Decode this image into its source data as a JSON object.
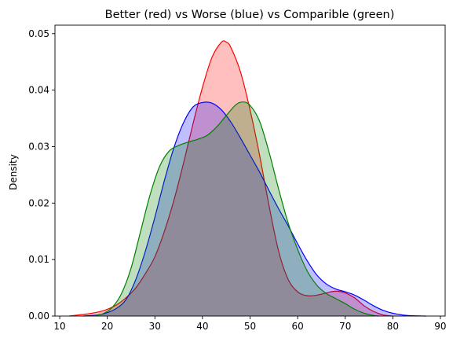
{
  "chart_data": {
    "type": "area",
    "title": "Better (red) vs Worse (blue) vs Comparible (green)",
    "xlabel": "",
    "ylabel": "Density",
    "xlim": [
      9,
      91
    ],
    "ylim": [
      0,
      0.0515
    ],
    "x_ticks": [
      10,
      20,
      30,
      40,
      50,
      60,
      70,
      80,
      90
    ],
    "y_ticks": [
      0.0,
      0.01,
      0.02,
      0.03,
      0.04,
      0.05
    ],
    "x_tick_labels": [
      "10",
      "20",
      "30",
      "40",
      "50",
      "60",
      "70",
      "80",
      "90"
    ],
    "y_tick_labels": [
      "0.00",
      "0.01",
      "0.02",
      "0.03",
      "0.04",
      "0.05"
    ],
    "grid": false,
    "legend": "none",
    "series": [
      {
        "color": "#ff0000",
        "fill_opacity": 0.25,
        "points": [
          [
            12,
            0.0
          ],
          [
            14,
            0.0002
          ],
          [
            16,
            0.0004
          ],
          [
            18,
            0.0007
          ],
          [
            20,
            0.0012
          ],
          [
            22,
            0.002
          ],
          [
            24,
            0.0033
          ],
          [
            26,
            0.005
          ],
          [
            28,
            0.0075
          ],
          [
            30,
            0.0105
          ],
          [
            32,
            0.015
          ],
          [
            34,
            0.0205
          ],
          [
            36,
            0.027
          ],
          [
            38,
            0.034
          ],
          [
            40,
            0.0405
          ],
          [
            42,
            0.0458
          ],
          [
            44,
            0.0485
          ],
          [
            45,
            0.0485
          ],
          [
            46,
            0.0475
          ],
          [
            48,
            0.0432
          ],
          [
            50,
            0.0365
          ],
          [
            52,
            0.0285
          ],
          [
            54,
            0.0195
          ],
          [
            56,
            0.0115
          ],
          [
            58,
            0.0065
          ],
          [
            60,
            0.0043
          ],
          [
            62,
            0.0036
          ],
          [
            64,
            0.0037
          ],
          [
            66,
            0.0041
          ],
          [
            68,
            0.0044
          ],
          [
            70,
            0.0041
          ],
          [
            72,
            0.0032
          ],
          [
            74,
            0.0018
          ],
          [
            76,
            0.0008
          ],
          [
            78,
            0.0002
          ],
          [
            80,
            0.0
          ]
        ]
      },
      {
        "color": "#0000ff",
        "fill_opacity": 0.25,
        "points": [
          [
            15,
            0.0
          ],
          [
            18,
            0.0002
          ],
          [
            20,
            0.0006
          ],
          [
            22,
            0.0014
          ],
          [
            24,
            0.003
          ],
          [
            26,
            0.0065
          ],
          [
            28,
            0.0115
          ],
          [
            30,
            0.0175
          ],
          [
            32,
            0.024
          ],
          [
            34,
            0.0298
          ],
          [
            36,
            0.0342
          ],
          [
            38,
            0.037
          ],
          [
            40,
            0.0378
          ],
          [
            42,
            0.0377
          ],
          [
            44,
            0.0365
          ],
          [
            46,
            0.0343
          ],
          [
            48,
            0.0315
          ],
          [
            50,
            0.0285
          ],
          [
            52,
            0.0255
          ],
          [
            54,
            0.0222
          ],
          [
            56,
            0.019
          ],
          [
            58,
            0.016
          ],
          [
            60,
            0.0128
          ],
          [
            62,
            0.0098
          ],
          [
            64,
            0.0073
          ],
          [
            66,
            0.0057
          ],
          [
            68,
            0.0048
          ],
          [
            70,
            0.0043
          ],
          [
            72,
            0.0037
          ],
          [
            74,
            0.0028
          ],
          [
            76,
            0.0018
          ],
          [
            78,
            0.001
          ],
          [
            80,
            0.0005
          ],
          [
            83,
            0.0001
          ],
          [
            87,
            0.0
          ]
        ]
      },
      {
        "color": "#008000",
        "fill_opacity": 0.25,
        "points": [
          [
            17,
            0.0
          ],
          [
            19,
            0.0004
          ],
          [
            21,
            0.0015
          ],
          [
            23,
            0.004
          ],
          [
            25,
            0.0085
          ],
          [
            27,
            0.015
          ],
          [
            29,
            0.0215
          ],
          [
            31,
            0.0265
          ],
          [
            33,
            0.0292
          ],
          [
            35,
            0.0302
          ],
          [
            37,
            0.0308
          ],
          [
            39,
            0.0313
          ],
          [
            41,
            0.032
          ],
          [
            43,
            0.0335
          ],
          [
            45,
            0.0355
          ],
          [
            47,
            0.0374
          ],
          [
            48.5,
            0.0379
          ],
          [
            50,
            0.0373
          ],
          [
            52,
            0.0345
          ],
          [
            54,
            0.029
          ],
          [
            56,
            0.0225
          ],
          [
            58,
            0.0165
          ],
          [
            60,
            0.0118
          ],
          [
            62,
            0.008
          ],
          [
            64,
            0.0055
          ],
          [
            66,
            0.004
          ],
          [
            68,
            0.0031
          ],
          [
            70,
            0.0022
          ],
          [
            72,
            0.0012
          ],
          [
            74,
            0.0005
          ],
          [
            76,
            0.0001
          ],
          [
            77,
            0.0
          ]
        ]
      }
    ]
  }
}
